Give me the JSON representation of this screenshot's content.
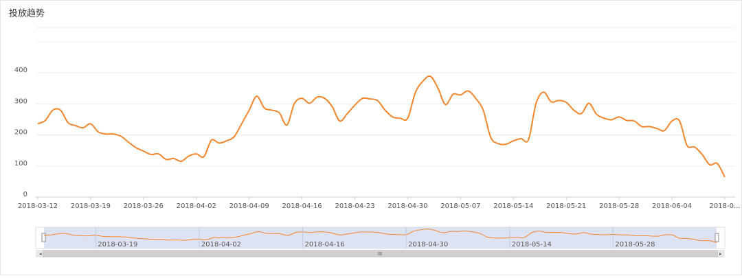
{
  "chart_data": {
    "type": "line",
    "title": "投放趋势",
    "x": [
      "2018-03-12",
      "2018-03-13",
      "2018-03-14",
      "2018-03-15",
      "2018-03-16",
      "2018-03-17",
      "2018-03-18",
      "2018-03-19",
      "2018-03-20",
      "2018-03-21",
      "2018-03-22",
      "2018-03-23",
      "2018-03-24",
      "2018-03-25",
      "2018-03-26",
      "2018-03-27",
      "2018-03-28",
      "2018-03-29",
      "2018-03-30",
      "2018-03-31",
      "2018-04-01",
      "2018-04-02",
      "2018-04-03",
      "2018-04-04",
      "2018-04-05",
      "2018-04-06",
      "2018-04-07",
      "2018-04-08",
      "2018-04-09",
      "2018-04-10",
      "2018-04-11",
      "2018-04-12",
      "2018-04-13",
      "2018-04-14",
      "2018-04-15",
      "2018-04-16",
      "2018-04-17",
      "2018-04-18",
      "2018-04-19",
      "2018-04-20",
      "2018-04-21",
      "2018-04-22",
      "2018-04-23",
      "2018-04-24",
      "2018-04-25",
      "2018-04-26",
      "2018-04-27",
      "2018-04-28",
      "2018-04-29",
      "2018-04-30",
      "2018-05-01",
      "2018-05-02",
      "2018-05-03",
      "2018-05-04",
      "2018-05-05",
      "2018-05-06",
      "2018-05-07",
      "2018-05-08",
      "2018-05-09",
      "2018-05-10",
      "2018-05-11",
      "2018-05-12",
      "2018-05-13",
      "2018-05-14",
      "2018-05-15",
      "2018-05-16",
      "2018-05-17",
      "2018-05-18",
      "2018-05-19",
      "2018-05-20",
      "2018-05-21",
      "2018-05-22",
      "2018-05-23",
      "2018-05-24",
      "2018-05-25",
      "2018-05-26",
      "2018-05-27",
      "2018-05-28",
      "2018-05-29",
      "2018-05-30",
      "2018-05-31",
      "2018-06-01",
      "2018-06-02",
      "2018-06-03",
      "2018-06-04",
      "2018-06-05",
      "2018-06-06",
      "2018-06-07",
      "2018-06-08",
      "2018-06-09",
      "2018-06-10",
      "2018-06-11"
    ],
    "values": [
      236,
      247,
      280,
      280,
      240,
      230,
      223,
      236,
      210,
      203,
      203,
      196,
      177,
      159,
      148,
      137,
      139,
      121,
      124,
      115,
      132,
      139,
      130,
      183,
      174,
      181,
      194,
      236,
      280,
      325,
      287,
      280,
      271,
      232,
      302,
      318,
      302,
      322,
      318,
      291,
      245,
      269,
      296,
      318,
      316,
      311,
      280,
      258,
      254,
      254,
      336,
      373,
      389,
      351,
      298,
      331,
      329,
      342,
      318,
      280,
      192,
      172,
      170,
      181,
      188,
      185,
      302,
      338,
      307,
      311,
      305,
      280,
      269,
      302,
      267,
      254,
      249,
      258,
      247,
      245,
      227,
      227,
      221,
      214,
      245,
      245,
      166,
      161,
      137,
      104,
      108,
      64
    ],
    "color": "#f5852b",
    "ylim": [
      0,
      500
    ],
    "yticks": [
      0,
      100,
      200,
      300,
      400
    ],
    "grid": true,
    "xticks": [
      "2018-03-12",
      "2018-03-19",
      "2018-03-26",
      "2018-04-02",
      "2018-04-09",
      "2018-04-16",
      "2018-04-23",
      "2018-04-30",
      "2018-05-07",
      "2018-05-14",
      "2018-05-21",
      "2018-05-28",
      "2018-06-04",
      {
        "value": "2018-06-11",
        "label": "2018-0..."
      }
    ]
  }
}
